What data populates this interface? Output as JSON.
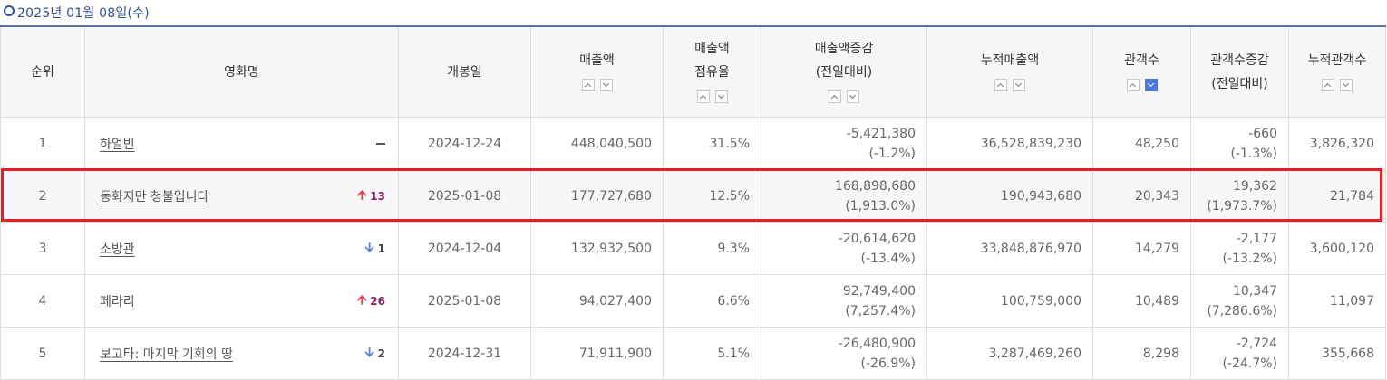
{
  "date_label": "2025년 01월 08일(수)",
  "headers": {
    "rank": "순위",
    "title": "영화명",
    "release": "개봉일",
    "sales": "매출액",
    "share_1": "매출액",
    "share_2": "점유율",
    "sales_change_1": "매출액증감",
    "sales_change_2": "(전일대비)",
    "cum_sales": "누적매출액",
    "audience": "관객수",
    "aud_change_1": "관객수증감",
    "aud_change_2": "(전일대비)",
    "cum_audience": "누적관객수"
  },
  "rows": [
    {
      "rank": "1",
      "title": "하얼빈",
      "rank_change": "",
      "direction": "same",
      "release": "2024-12-24",
      "sales": "448,040,500",
      "share": "31.5%",
      "sales_change": "-5,421,380",
      "sales_change_pct": "(-1.2%)",
      "cum_sales": "36,528,839,230",
      "audience": "48,250",
      "aud_change": "-660",
      "aud_change_pct": "(-1.3%)",
      "cum_audience": "3,826,320"
    },
    {
      "rank": "2",
      "title": "동화지만 청불입니다",
      "rank_change": "13",
      "direction": "up",
      "release": "2025-01-08",
      "sales": "177,727,680",
      "share": "12.5%",
      "sales_change": "168,898,680",
      "sales_change_pct": "(1,913.0%)",
      "cum_sales": "190,943,680",
      "audience": "20,343",
      "aud_change": "19,362",
      "aud_change_pct": "(1,973.7%)",
      "cum_audience": "21,784"
    },
    {
      "rank": "3",
      "title": "소방관",
      "rank_change": "1",
      "direction": "down",
      "release": "2024-12-04",
      "sales": "132,932,500",
      "share": "9.3%",
      "sales_change": "-20,614,620",
      "sales_change_pct": "(-13.4%)",
      "cum_sales": "33,848,876,970",
      "audience": "14,279",
      "aud_change": "-2,177",
      "aud_change_pct": "(-13.2%)",
      "cum_audience": "3,600,120"
    },
    {
      "rank": "4",
      "title": "페라리",
      "rank_change": "26",
      "direction": "up",
      "release": "2025-01-08",
      "sales": "94,027,400",
      "share": "6.6%",
      "sales_change": "92,749,400",
      "sales_change_pct": "(7,257.4%)",
      "cum_sales": "100,759,000",
      "audience": "10,489",
      "aud_change": "10,347",
      "aud_change_pct": "(7,286.6%)",
      "cum_audience": "11,097"
    },
    {
      "rank": "5",
      "title": "보고타: 마지막 기회의 땅",
      "rank_change": "2",
      "direction": "down",
      "release": "2024-12-31",
      "sales": "71,911,900",
      "share": "5.1%",
      "sales_change": "-26,480,900",
      "sales_change_pct": "(-26.9%)",
      "cum_sales": "3,287,469,260",
      "audience": "8,298",
      "aud_change": "-2,724",
      "aud_change_pct": "(-24.7%)",
      "cum_audience": "355,668"
    }
  ],
  "active_sort": "audience-desc",
  "colors": {
    "accent": "#4a76e0",
    "header_border": "#5b6fb5",
    "highlight": "#e61e28",
    "rank_up": "#e8404f",
    "rank_down": "#5b86d6"
  }
}
